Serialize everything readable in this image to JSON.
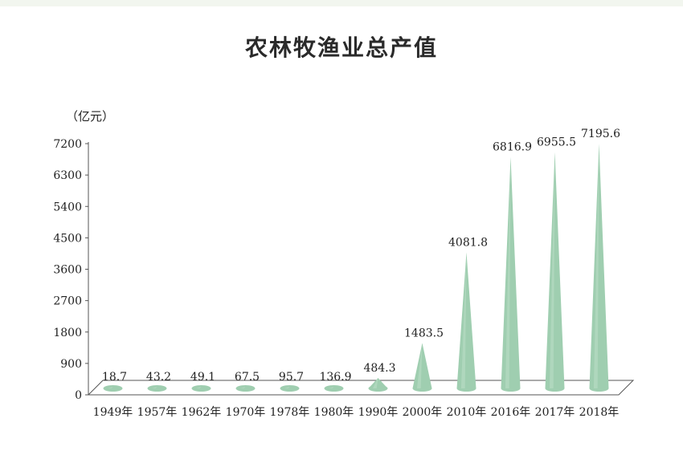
{
  "chart_data": {
    "type": "bar",
    "title": "农林牧渔业总产值",
    "ylabel": "（亿元）",
    "xlabel": "",
    "categories": [
      "1949年",
      "1957年",
      "1962年",
      "1970年",
      "1978年",
      "1980年",
      "1990年",
      "2000年",
      "2010年",
      "2016年",
      "2017年",
      "2018年"
    ],
    "values": [
      18.7,
      43.2,
      49.1,
      67.5,
      95.7,
      136.9,
      484.3,
      1483.5,
      4081.8,
      6816.9,
      6955.5,
      7195.6
    ],
    "value_labels": [
      "18.7",
      "43.2",
      "49.1",
      "67.5",
      "95.7",
      "136.9",
      "484.3",
      "1483.5",
      "4081.8",
      "6816.9",
      "6955.5",
      "7195.6"
    ],
    "yticks": [
      "0",
      "900",
      "1800",
      "2700",
      "3600",
      "4500",
      "5400",
      "6300",
      "7200"
    ],
    "ylim": [
      0,
      7200
    ],
    "grid": false,
    "legend": "none",
    "colors": {
      "cone": "#9fceb0",
      "cone_shadow": "#b7dcc3",
      "floor": "#ffffff",
      "axis": "#555555"
    }
  }
}
